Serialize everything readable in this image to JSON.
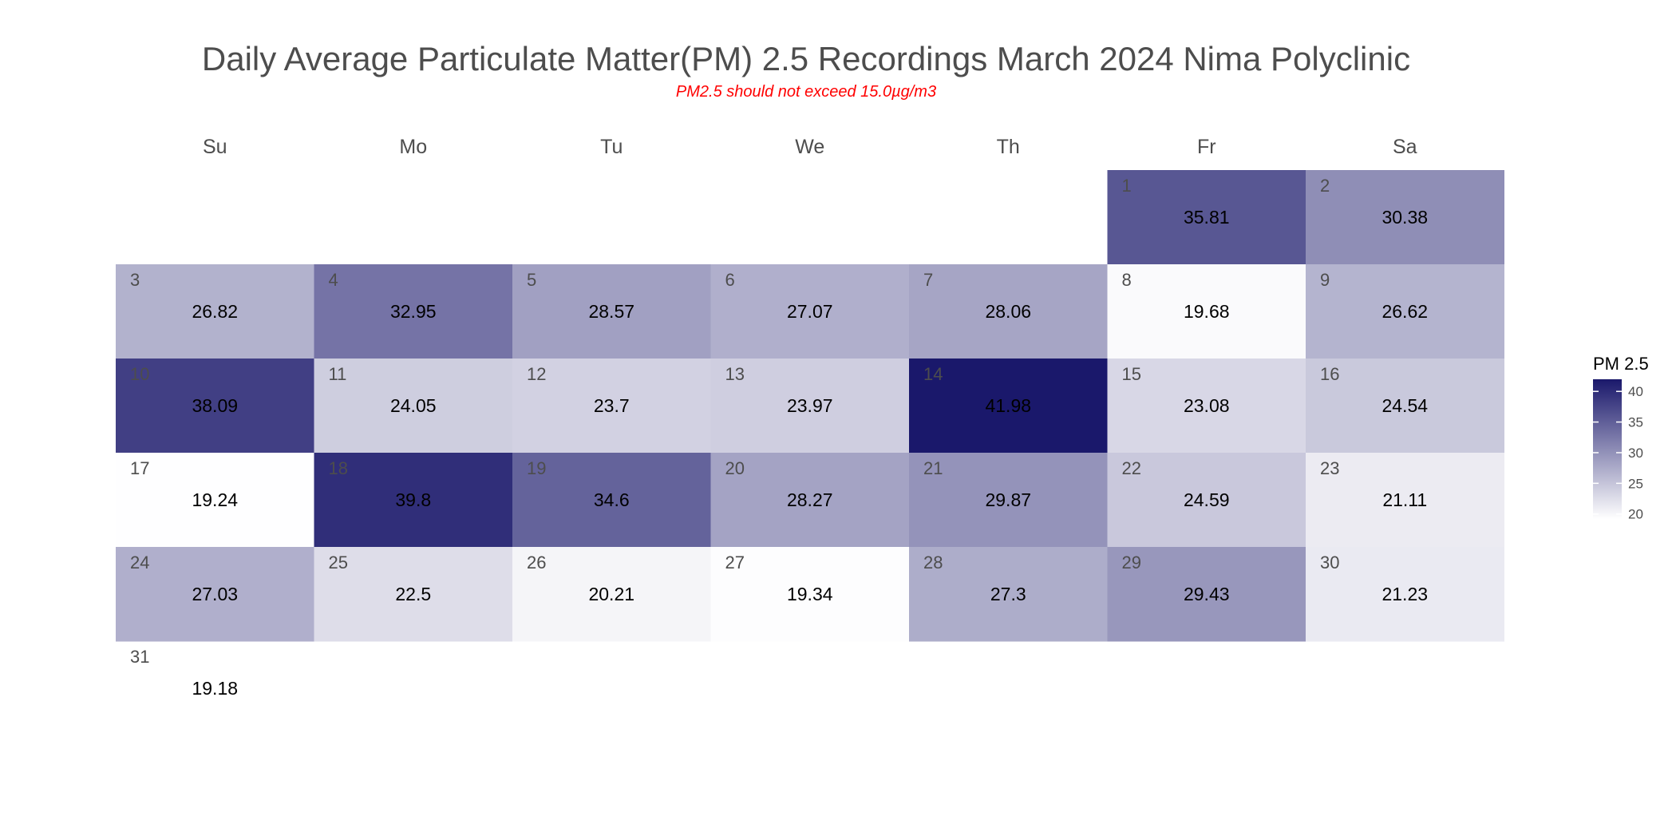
{
  "chart_data": {
    "type": "heatmap",
    "title": "Daily Average Particulate Matter(PM) 2.5 Recordings March 2024 Nima Polyclinic",
    "subtitle": "PM2.5 should not exceed 15.0µg/m3",
    "weekdays": [
      "Su",
      "Mo",
      "Tu",
      "We",
      "Th",
      "Fr",
      "Sa"
    ],
    "first_weekday_index": 5,
    "days": [
      1,
      2,
      3,
      4,
      5,
      6,
      7,
      8,
      9,
      10,
      11,
      12,
      13,
      14,
      15,
      16,
      17,
      18,
      19,
      20,
      21,
      22,
      23,
      24,
      25,
      26,
      27,
      28,
      29,
      30,
      31
    ],
    "value_labels": [
      "35.81",
      "30.38",
      "26.82",
      "32.95",
      "28.57",
      "27.07",
      "28.06",
      "19.68",
      "26.62",
      "38.09",
      "24.05",
      "23.7",
      "23.97",
      "41.98",
      "23.08",
      "24.54",
      "19.24",
      "39.8",
      "34.6",
      "28.27",
      "29.87",
      "24.59",
      "21.11",
      "27.03",
      "22.5",
      "20.21",
      "19.34",
      "27.3",
      "29.43",
      "21.23",
      "19.18"
    ],
    "legend": {
      "title": "PM 2.5",
      "ticks": [
        "40",
        "35",
        "30",
        "25",
        "20"
      ],
      "range": [
        19.18,
        41.98
      ],
      "position": "right"
    },
    "colors": {
      "low": "#ffffff",
      "high": "#1a186b",
      "title": "#4d4d4d",
      "subtitle": "#ff0000",
      "day_number": "#4d4d4d",
      "value_text": "#000000"
    }
  }
}
